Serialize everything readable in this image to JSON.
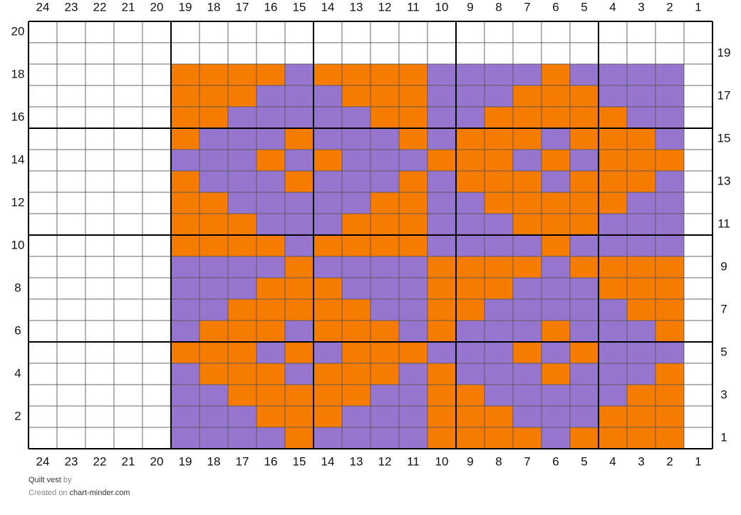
{
  "chart": {
    "column_labels": [
      "24",
      "23",
      "22",
      "21",
      "20",
      "19",
      "18",
      "17",
      "16",
      "15",
      "14",
      "13",
      "12",
      "11",
      "10",
      "9",
      "8",
      "7",
      "6",
      "5",
      "4",
      "3",
      "2",
      "1"
    ],
    "left_row_labels": [
      "20",
      "18",
      "16",
      "14",
      "12",
      "10",
      "8",
      "6",
      "4",
      "2"
    ],
    "right_row_labels": [
      "19",
      "17",
      "15",
      "13",
      "11",
      "9",
      "7",
      "5",
      "3",
      "1"
    ],
    "colors": {
      "O": "#f57c00",
      "P": "#9575cd"
    },
    "rows": [
      "........................",
      "........................",
      ".....OOOOPOOOOPPPPOPPPP.",
      ".....OOOPPPOOOPPPOOOPPP.",
      ".....OOPPPPPOOPPOOOOOPP.",
      ".....OPPPOPPPOPOOOPOOOP.",
      ".....PPPOPOPPPOOOPOPOOO.",
      ".....OPPPOPPPOPOOOPOOOP.",
      ".....OOPPPPPOOPPOOOOOPP.",
      ".....OOOPPPOOOPPPOOOPPP.",
      ".....OOOOPOOOOPPPPOPPPP.",
      ".....PPPPOPPPPOOOOPOOOO.",
      ".....PPPOOOPPPOOOPPPOOO.",
      ".....PPOOOOOPPOOPPPPPOO.",
      ".....POOOPOOOPOPPPOPPPO.",
      ".....OOOPOPOOOPPPOPOPPP.",
      ".....POOOPOOOPOPPPOPPPO.",
      ".....PPOOOOOPPOOPPPPPOO.",
      ".....PPPOOOPPPOOOPPPOOO.",
      ".....PPPPOPPPPOOOOPOOOO."
    ]
  },
  "footer": {
    "title": "Quilt vest",
    "by": "by",
    "created": "Created on",
    "site": "chart-minder.com"
  }
}
